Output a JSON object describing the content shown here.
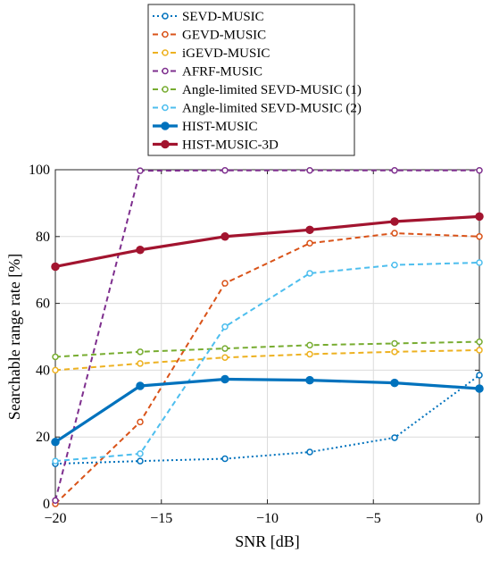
{
  "chart_data": {
    "type": "line",
    "xlabel": "SNR [dB]",
    "ylabel": "Searchable range rate [%]",
    "xlim": [
      -20,
      0
    ],
    "ylim": [
      0,
      100
    ],
    "xticks": [
      -20,
      -15,
      -10,
      -5,
      0
    ],
    "yticks": [
      0,
      20,
      40,
      60,
      80,
      100
    ],
    "grid": true,
    "legend_position": "top",
    "series": [
      {
        "name": "SEVD-MUSIC",
        "color": "#0072BD",
        "style": "dotted",
        "marker": "open-circle",
        "x": [
          -20,
          -16,
          -12,
          -8,
          -4,
          0
        ],
        "y": [
          12,
          12.8,
          13.5,
          15.5,
          19.8,
          38.5
        ]
      },
      {
        "name": "GEVD-MUSIC",
        "color": "#D95319",
        "style": "dashed",
        "marker": "open-circle",
        "x": [
          -20,
          -16,
          -12,
          -8,
          -4,
          0
        ],
        "y": [
          0,
          24.5,
          66,
          78,
          81,
          80
        ]
      },
      {
        "name": "iGEVD-MUSIC",
        "color": "#EDB120",
        "style": "dashed",
        "marker": "open-circle",
        "x": [
          -20,
          -16,
          -12,
          -8,
          -4,
          0
        ],
        "y": [
          40,
          42,
          43.8,
          44.8,
          45.5,
          46
        ]
      },
      {
        "name": "AFRF-MUSIC",
        "color": "#7E2F8E",
        "style": "dashed",
        "marker": "open-circle",
        "x": [
          -20,
          -16,
          -12,
          -8,
          -4,
          0
        ],
        "y": [
          1,
          99.7,
          99.8,
          99.8,
          99.8,
          99.8
        ]
      },
      {
        "name": "Angle-limited SEVD-MUSIC (1)",
        "color": "#77AC30",
        "style": "dashed",
        "marker": "open-circle",
        "x": [
          -20,
          -16,
          -12,
          -8,
          -4,
          0
        ],
        "y": [
          44,
          45.5,
          46.5,
          47.5,
          48,
          48.5
        ]
      },
      {
        "name": "Angle-limited SEVD-MUSIC (2)",
        "color": "#4DBEEE",
        "style": "dashed",
        "marker": "open-circle",
        "x": [
          -20,
          -16,
          -12,
          -8,
          -4,
          0
        ],
        "y": [
          12.8,
          15,
          53,
          69,
          71.5,
          72.2
        ]
      },
      {
        "name": "HIST-MUSIC",
        "color": "#0072BD",
        "style": "solid-thick",
        "marker": "filled-circle",
        "x": [
          -20,
          -16,
          -12,
          -8,
          -4,
          0
        ],
        "y": [
          18.5,
          35.3,
          37.3,
          37,
          36.2,
          34.5
        ]
      },
      {
        "name": "HIST-MUSIC-3D",
        "color": "#A2142F",
        "style": "solid-thick",
        "marker": "filled-circle",
        "x": [
          -20,
          -16,
          -12,
          -8,
          -4,
          0
        ],
        "y": [
          71,
          76,
          80,
          82,
          84.5,
          86
        ]
      }
    ]
  }
}
